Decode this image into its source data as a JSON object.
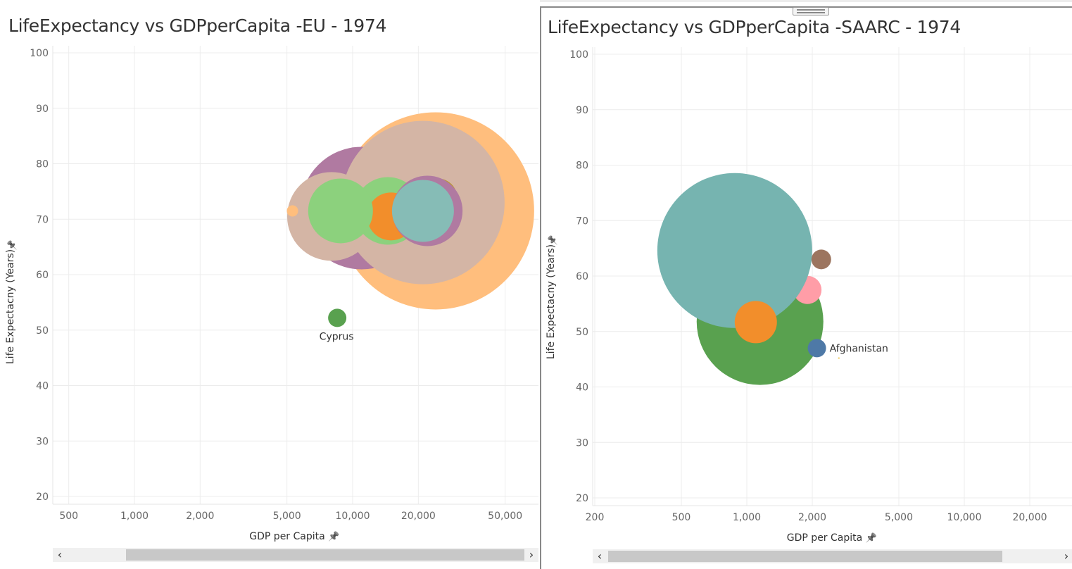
{
  "charts": [
    {
      "title": "LifeExpectancy vs GDPperCapita -EU - 1974",
      "xlabel": "GDP per Capita",
      "ylabel": "Life Expectacny (Years)",
      "pin_icon": "pin-icon",
      "x_scale": "log",
      "x_ticks": [
        500,
        1000,
        2000,
        5000,
        10000,
        20000,
        50000
      ],
      "x_tick_labels": [
        "500",
        "1,000",
        "2,000",
        "5,000",
        "10,000",
        "20,000",
        "50,000"
      ],
      "y_ticks": [
        20,
        30,
        40,
        50,
        60,
        70,
        80,
        90,
        100
      ],
      "y_tick_labels": [
        "20",
        "30",
        "40",
        "50",
        "60",
        "70",
        "80",
        "90",
        "100"
      ],
      "chart_data": {
        "type": "scatter",
        "encoding": "bubble",
        "x_scale": "log",
        "ylim": [
          20,
          100
        ],
        "grid": true,
        "points": [
          {
            "x": 24000,
            "y": 71.5,
            "size": 140,
            "color": "#ffbe7d"
          },
          {
            "x": 11000,
            "y": 72,
            "size": 87,
            "color": "#b07aa1"
          },
          {
            "x": 8000,
            "y": 70.5,
            "size": 63,
            "color": "#d4b5a5"
          },
          {
            "x": 21000,
            "y": 73,
            "size": 116,
            "color": "#d4b5a5"
          },
          {
            "x": 24500,
            "y": 73.8,
            "size": 28,
            "color": "#b9962b"
          },
          {
            "x": 14500,
            "y": 71.5,
            "size": 48,
            "color": "#8cd17d"
          },
          {
            "x": 15000,
            "y": 70.5,
            "size": 34,
            "color": "#f28e2b"
          },
          {
            "x": 8800,
            "y": 71.5,
            "size": 46,
            "color": "#8cd17d"
          },
          {
            "x": 22000,
            "y": 71.5,
            "size": 50,
            "color": "#b07aa1"
          },
          {
            "x": 21000,
            "y": 71.5,
            "size": 44,
            "color": "#86bcb6"
          },
          {
            "x": 5300,
            "y": 71.5,
            "size": 8,
            "color": "#ffbe7d"
          },
          {
            "x": 8500,
            "y": 52.2,
            "size": 13,
            "color": "#59a14f",
            "label": "Cyprus"
          }
        ]
      },
      "colors": {
        "grid": "#ececec",
        "tick_text": "#666666",
        "label_text": "#333333"
      }
    },
    {
      "title": "LifeExpectancy vs GDPperCapita -SAARC - 1974",
      "xlabel": "GDP per Capita",
      "ylabel": "Life Expectacny (Years)",
      "pin_icon": "pin-icon",
      "x_scale": "log",
      "x_ticks": [
        200,
        500,
        1000,
        2000,
        5000,
        10000,
        20000
      ],
      "x_tick_labels": [
        "200",
        "500",
        "1,000",
        "2,000",
        "5,000",
        "10,000",
        "20,000"
      ],
      "y_ticks": [
        20,
        30,
        40,
        50,
        60,
        70,
        80,
        90,
        100
      ],
      "y_tick_labels": [
        "20",
        "30",
        "40",
        "50",
        "60",
        "70",
        "80",
        "90",
        "100"
      ],
      "chart_data": {
        "type": "scatter",
        "encoding": "bubble",
        "x_scale": "log",
        "ylim": [
          20,
          100
        ],
        "grid": true,
        "points": [
          {
            "x": 1150,
            "y": 51.8,
            "size": 90,
            "color": "#59a14f"
          },
          {
            "x": 1900,
            "y": 57.5,
            "size": 20,
            "color": "#ff9da7"
          },
          {
            "x": 880,
            "y": 64.6,
            "size": 110,
            "color": "#76b4b0"
          },
          {
            "x": 2200,
            "y": 63,
            "size": 14,
            "color": "#9c755f"
          },
          {
            "x": 1100,
            "y": 51.7,
            "size": 30,
            "color": "#f28e2b"
          },
          {
            "x": 2100,
            "y": 47,
            "size": 13,
            "color": "#4e79a7",
            "label": "Afghanistan"
          },
          {
            "x": 2650,
            "y": 45.2,
            "size": 1,
            "color": "#f1ce63"
          }
        ]
      },
      "colors": {
        "grid": "#ececec",
        "tick_text": "#666666",
        "label_text": "#333333"
      }
    }
  ]
}
